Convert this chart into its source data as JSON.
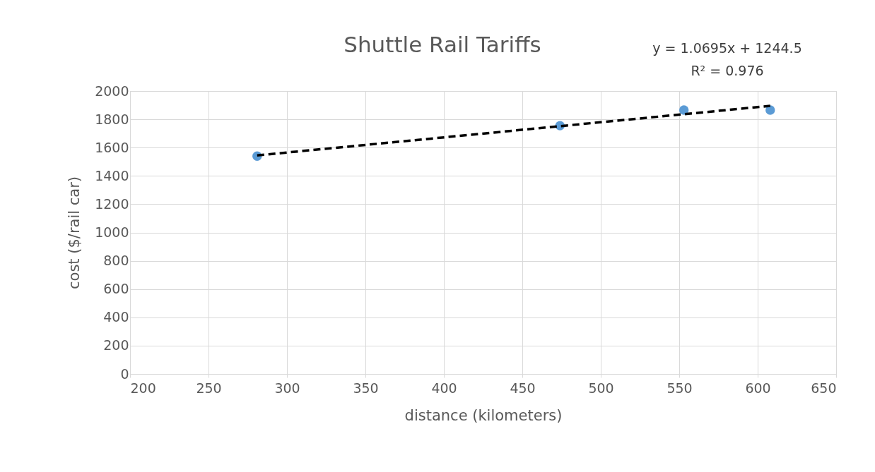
{
  "chart_data": {
    "type": "scatter",
    "title": "Shuttle Rail Tariffs",
    "xlabel": "distance (kilometers)",
    "ylabel": "cost ($/rail car)",
    "annotations": [
      "y = 1.0695x + 1244.5",
      "R² = 0.976"
    ],
    "series": [
      {
        "x": [
          281,
          474,
          553,
          608
        ],
        "values": [
          1540,
          1755,
          1865,
          1865
        ],
        "color": "#5b9bd5",
        "marker": "circle"
      },
      {
        "type": "line",
        "x": [
          281,
          608
        ],
        "values": [
          1545,
          1895
        ],
        "color": "#000000",
        "line_style": "dashed"
      }
    ],
    "xlim": [
      200,
      650
    ],
    "xticks": [
      200,
      250,
      300,
      350,
      400,
      450,
      500,
      550,
      600,
      650
    ],
    "ylim": [
      0,
      2000
    ],
    "yticks": [
      0,
      200,
      400,
      600,
      800,
      1000,
      1200,
      1400,
      1600,
      1800,
      2000
    ],
    "grid": true,
    "legend": false
  }
}
